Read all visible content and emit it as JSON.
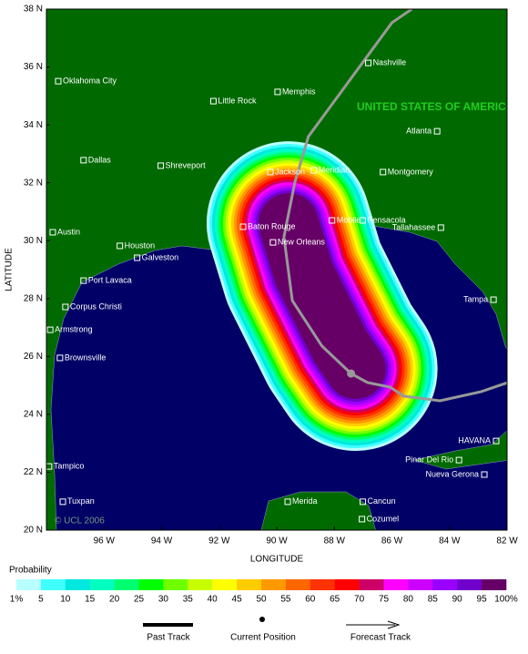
{
  "chart_data": {
    "type": "map",
    "x_label": "LONGITUDE",
    "y_label": "LATITUDE",
    "xlim": [
      -98,
      -82
    ],
    "ylim": [
      20,
      38
    ],
    "xticks": [
      {
        "value": -96,
        "label": "96 W"
      },
      {
        "value": -94,
        "label": "94 W"
      },
      {
        "value": -92,
        "label": "92 W"
      },
      {
        "value": -90,
        "label": "90 W"
      },
      {
        "value": -88,
        "label": "88 W"
      },
      {
        "value": -86,
        "label": "86 W"
      },
      {
        "value": -84,
        "label": "84 W"
      },
      {
        "value": -82,
        "label": "82 W"
      }
    ],
    "yticks": [
      {
        "value": 20,
        "label": "20 N"
      },
      {
        "value": 22,
        "label": "22 N"
      },
      {
        "value": 24,
        "label": "24 N"
      },
      {
        "value": 26,
        "label": "26 N"
      },
      {
        "value": 28,
        "label": "28 N"
      },
      {
        "value": 30,
        "label": "30 N"
      },
      {
        "value": 32,
        "label": "32 N"
      },
      {
        "value": 34,
        "label": "34 N"
      },
      {
        "value": 36,
        "label": "36 N"
      },
      {
        "value": 38,
        "label": "38 N"
      }
    ],
    "country_label": "UNITED STATES OF AMERICA",
    "copyright": "© UCL 2006",
    "cities": [
      {
        "name": "Oklahoma City",
        "lon": -97.59,
        "lat": 35.51
      },
      {
        "name": "Little Rock",
        "lon": -92.2,
        "lat": 34.82
      },
      {
        "name": "Memphis",
        "lon": -89.97,
        "lat": 35.14
      },
      {
        "name": "Nashville",
        "lon": -86.82,
        "lat": 36.14
      },
      {
        "name": "Atlanta",
        "lon": -84.43,
        "lat": 33.78
      },
      {
        "name": "Dallas",
        "lon": -96.71,
        "lat": 32.78
      },
      {
        "name": "Shreveport",
        "lon": -94.03,
        "lat": 32.59
      },
      {
        "name": "Jackson",
        "lon": -90.22,
        "lat": 32.37
      },
      {
        "name": "Meridian",
        "lon": -88.71,
        "lat": 32.43
      },
      {
        "name": "Montgomery",
        "lon": -86.31,
        "lat": 32.37
      },
      {
        "name": "Austin",
        "lon": -97.78,
        "lat": 30.29
      },
      {
        "name": "Houston",
        "lon": -95.45,
        "lat": 29.82
      },
      {
        "name": "Galveston",
        "lon": -94.85,
        "lat": 29.41
      },
      {
        "name": "Baton Rouge",
        "lon": -91.17,
        "lat": 30.48
      },
      {
        "name": "New Orleans",
        "lon": -90.13,
        "lat": 29.94
      },
      {
        "name": "Mobile",
        "lon": -88.08,
        "lat": 30.7
      },
      {
        "name": "Pensacola",
        "lon": -87.01,
        "lat": 30.7
      },
      {
        "name": "Tallahassee",
        "lon": -84.3,
        "lat": 30.45
      },
      {
        "name": "Port Lavaca",
        "lon": -96.71,
        "lat": 28.62
      },
      {
        "name": "Corpus Christi",
        "lon": -97.34,
        "lat": 27.71
      },
      {
        "name": "Tampa",
        "lon": -82.47,
        "lat": 27.96
      },
      {
        "name": "Armstrong",
        "lon": -97.87,
        "lat": 26.92
      },
      {
        "name": "Brownsville",
        "lon": -97.53,
        "lat": 25.95
      },
      {
        "name": "HAVANA",
        "lon": -82.38,
        "lat": 23.08
      },
      {
        "name": "Pinar Del Rio",
        "lon": -83.67,
        "lat": 22.42
      },
      {
        "name": "Nueva Gerona",
        "lon": -82.79,
        "lat": 21.92
      },
      {
        "name": "Tampico",
        "lon": -97.91,
        "lat": 22.2
      },
      {
        "name": "Tuxpan",
        "lon": -97.43,
        "lat": 20.98
      },
      {
        "name": "Merida",
        "lon": -89.62,
        "lat": 20.98
      },
      {
        "name": "Cancun",
        "lon": -87.01,
        "lat": 20.98
      },
      {
        "name": "Cozumel",
        "lon": -87.04,
        "lat": 20.38
      }
    ],
    "probability_swath": {
      "lon": [
        -89.59,
        -89.06,
        -87.8,
        -87.26
      ],
      "lat": [
        30.6,
        28.87,
        26.36,
        25.57
      ]
    },
    "past_track": {
      "name": "Past Track",
      "lon": [
        -85.31,
        -86.0,
        -88.9,
        -89.37,
        -89.75,
        -89.46,
        -88.43,
        -87.42
      ],
      "lat": [
        38,
        37.53,
        33.6,
        32.02,
        30.13,
        27.93,
        26.36,
        25.41
      ]
    },
    "current_position": {
      "name": "Current Position",
      "lon": -87.42,
      "lat": 25.41
    },
    "forecast_track": {
      "name": "Forecast Track",
      "lon": [
        -87.42,
        -86.85,
        -86.06,
        -85.59,
        -84.33,
        -82.91,
        -81.97
      ],
      "lat": [
        25.41,
        25.1,
        24.94,
        24.63,
        24.47,
        24.78,
        25.1
      ]
    },
    "probability": {
      "title": "Probability",
      "ticks": [
        {
          "value": 1,
          "label": "1%"
        },
        5,
        10,
        15,
        20,
        25,
        30,
        35,
        40,
        45,
        50,
        55,
        60,
        65,
        70,
        75,
        80,
        85,
        90,
        95,
        {
          "value": 100,
          "label": "100%"
        }
      ],
      "colors": [
        "#b8ffff",
        "#40ffff",
        "#00e8e0",
        "#00ffc0",
        "#00ff70",
        "#00ff00",
        "#70ff00",
        "#c8ff00",
        "#ffff00",
        "#ffcc00",
        "#ff9900",
        "#ff6600",
        "#ff3300",
        "#ff0000",
        "#cc0066",
        "#ff00ff",
        "#cc00ff",
        "#9900ff",
        "#7000cc",
        "#660066"
      ]
    }
  }
}
